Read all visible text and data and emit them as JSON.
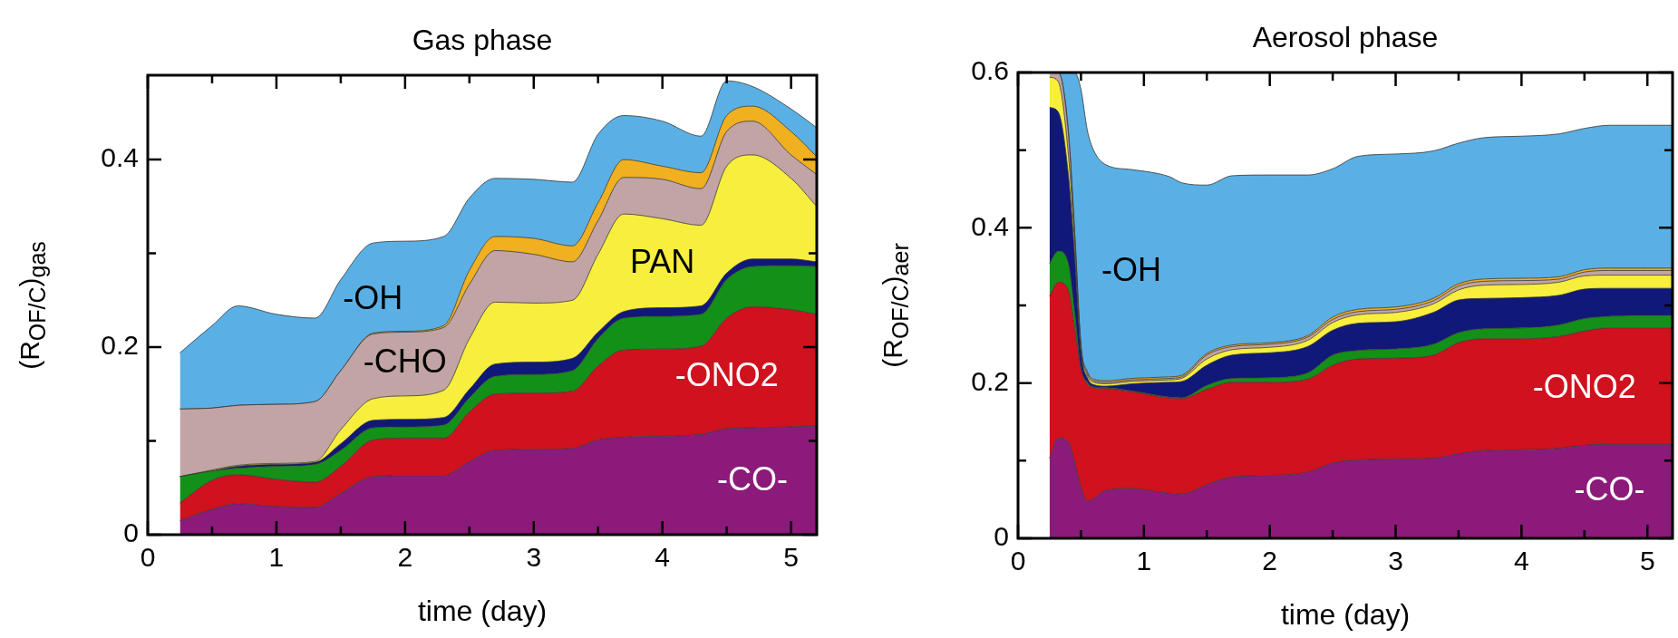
{
  "chart_data": [
    {
      "type": "area",
      "title": "Gas phase",
      "xlabel": "time (day)",
      "ylabel": "(R$_{OF/C}$)$_{gas}$",
      "stacked": true,
      "xlim": [
        0,
        5.2
      ],
      "ylim": [
        0,
        0.49
      ],
      "xticks": [
        0,
        {
          "value": 0.5,
          "label": null
        },
        1,
        {
          "value": 1.5,
          "label": null
        },
        2,
        {
          "value": 2.5,
          "label": null
        },
        3,
        {
          "value": 3.5,
          "label": null
        },
        4,
        {
          "value": 4.5,
          "label": null
        },
        5
      ],
      "yticks": [
        0,
        {
          "value": 0.1,
          "label": null
        },
        0.2,
        {
          "value": 0.3,
          "label": null
        },
        0.4
      ],
      "x": [
        0.25,
        0.5,
        0.7,
        1.0,
        1.3,
        1.5,
        1.75,
        2.0,
        2.3,
        2.5,
        2.7,
        3.0,
        3.3,
        3.5,
        3.7,
        4.0,
        4.3,
        4.5,
        4.7,
        5.0,
        5.2
      ],
      "series": [
        {
          "name": "-CO-",
          "color": "#8c1a7a",
          "values": [
            0.015,
            0.027,
            0.033,
            0.03,
            0.029,
            0.044,
            0.062,
            0.063,
            0.063,
            0.078,
            0.09,
            0.091,
            0.092,
            0.101,
            0.104,
            0.105,
            0.107,
            0.113,
            0.114,
            0.115,
            0.116
          ]
        },
        {
          "name": "-ONO2",
          "color": "#d0111e",
          "values": [
            0.019,
            0.031,
            0.031,
            0.029,
            0.027,
            0.029,
            0.039,
            0.04,
            0.04,
            0.053,
            0.06,
            0.06,
            0.061,
            0.079,
            0.093,
            0.093,
            0.094,
            0.118,
            0.129,
            0.125,
            0.119
          ]
        },
        {
          "color": "#139018",
          "values": [
            0.028,
            0.01,
            0.007,
            0.014,
            0.019,
            0.017,
            0.013,
            0.012,
            0.014,
            0.015,
            0.019,
            0.02,
            0.022,
            0.029,
            0.034,
            0.035,
            0.034,
            0.041,
            0.043,
            0.047,
            0.051
          ]
        },
        {
          "color": "#10187a",
          "values": [
            0,
            0,
            0.002,
            0.002,
            0.002,
            0.007,
            0.008,
            0.008,
            0.008,
            0.009,
            0.013,
            0.013,
            0.013,
            0.007,
            0.007,
            0.009,
            0.009,
            0.007,
            0.008,
            0.007,
            0.005
          ]
        },
        {
          "name": "PAN",
          "color": "#f7ee3d",
          "values": [
            0,
            0.001,
            0.001,
            0.001,
            0.001,
            0.015,
            0.023,
            0.025,
            0.029,
            0.054,
            0.066,
            0.063,
            0.062,
            0.083,
            0.104,
            0.095,
            0.086,
            0.114,
            0.111,
            0.086,
            0.059
          ]
        },
        {
          "name": "-CHO",
          "color": "#c2a4a4",
          "values": [
            0.072,
            0.066,
            0.064,
            0.063,
            0.064,
            0.063,
            0.069,
            0.068,
            0.067,
            0.058,
            0.055,
            0.052,
            0.041,
            0.036,
            0.039,
            0.042,
            0.039,
            0.037,
            0.036,
            0.025,
            0.034
          ]
        },
        {
          "color": "#f0b020",
          "values": [
            0,
            0,
            0,
            0,
            0,
            0,
            0.001,
            0.001,
            0.002,
            0.015,
            0.015,
            0.017,
            0.017,
            0.019,
            0.019,
            0.014,
            0.017,
            0.017,
            0.016,
            0.025,
            0.019
          ]
        },
        {
          "name": "-OH",
          "color": "#5ab0e4",
          "values": [
            0.06,
            0.088,
            0.106,
            0.096,
            0.089,
            0.097,
            0.096,
            0.096,
            0.095,
            0.077,
            0.062,
            0.063,
            0.068,
            0.073,
            0.047,
            0.048,
            0.039,
            0.037,
            0.021,
            0.024,
            0.031
          ]
        }
      ]
    },
    {
      "type": "area",
      "title": "Aerosol phase",
      "xlabel": "time (day)",
      "ylabel": "(R$_{OF/C}$)$_{aer}$",
      "stacked": true,
      "xlim": [
        0,
        5.2
      ],
      "ylim": [
        0,
        0.6
      ],
      "xticks": [
        0,
        {
          "value": 0.5,
          "label": null
        },
        1,
        {
          "value": 1.5,
          "label": null
        },
        2,
        {
          "value": 2.5,
          "label": null
        },
        3,
        {
          "value": 3.5,
          "label": null
        },
        4,
        {
          "value": 4.5,
          "label": null
        },
        5
      ],
      "yticks": [
        0,
        {
          "value": 0.1,
          "label": null
        },
        0.2,
        {
          "value": 0.3,
          "label": null
        },
        0.4,
        {
          "value": 0.5,
          "label": null
        },
        0.6
      ],
      "x": [
        0.25,
        0.32,
        0.4,
        0.45,
        0.5,
        0.55,
        0.6,
        0.7,
        0.9,
        1.2,
        1.3,
        1.5,
        1.7,
        2.0,
        2.3,
        2.5,
        2.7,
        3.0,
        3.3,
        3.5,
        3.7,
        4.0,
        4.3,
        4.5,
        4.7,
        5.0,
        5.2
      ],
      "series": [
        {
          "name": "-CO-",
          "color": "#8c1a7a",
          "values": [
            0.103,
            0.129,
            0.124,
            0.098,
            0.066,
            0.048,
            0.051,
            0.062,
            0.064,
            0.058,
            0.057,
            0.069,
            0.079,
            0.081,
            0.085,
            0.097,
            0.101,
            0.102,
            0.103,
            0.109,
            0.113,
            0.114,
            0.116,
            0.12,
            0.121,
            0.121,
            0.121
          ]
        },
        {
          "name": "-ONO2",
          "color": "#d0111e",
          "values": [
            0.209,
            0.201,
            0.196,
            0.172,
            0.152,
            0.151,
            0.143,
            0.131,
            0.125,
            0.123,
            0.123,
            0.123,
            0.122,
            0.12,
            0.12,
            0.126,
            0.13,
            0.13,
            0.133,
            0.143,
            0.144,
            0.143,
            0.144,
            0.147,
            0.15,
            0.15,
            0.15
          ]
        },
        {
          "color": "#139018",
          "values": [
            0.042,
            0.04,
            0.034,
            0.021,
            0.002,
            0.002,
            0.001,
            0.001,
            0.001,
            0.001,
            0.001,
            0.005,
            0.005,
            0.006,
            0.008,
            0.013,
            0.011,
            0.012,
            0.014,
            0.013,
            0.013,
            0.014,
            0.015,
            0.016,
            0.015,
            0.016,
            0.016
          ]
        },
        {
          "color": "#10187a",
          "values": [
            0.201,
            0.179,
            0.114,
            0.073,
            0.019,
            0.006,
            0.003,
            0.002,
            0.009,
            0.019,
            0.021,
            0.026,
            0.03,
            0.032,
            0.034,
            0.032,
            0.035,
            0.035,
            0.041,
            0.042,
            0.039,
            0.039,
            0.038,
            0.038,
            0.036,
            0.035,
            0.035
          ]
        },
        {
          "color": "#f7ee3d",
          "values": [
            0.039,
            0.039,
            0.026,
            0.016,
            0.005,
            0.003,
            0.003,
            0.003,
            0.003,
            0.003,
            0.004,
            0.008,
            0.007,
            0.007,
            0.008,
            0.01,
            0.011,
            0.012,
            0.011,
            0.013,
            0.017,
            0.017,
            0.017,
            0.017,
            0.017,
            0.017,
            0.017
          ]
        },
        {
          "color": "#c2a4a4",
          "values": [
            0.006,
            0.012,
            0.027,
            0.01,
            0.002,
            0.003,
            0.002,
            0.002,
            0.002,
            0.002,
            0.002,
            0.005,
            0.004,
            0.004,
            0.004,
            0.004,
            0.004,
            0.004,
            0.004,
            0.005,
            0.005,
            0.005,
            0.004,
            0.005,
            0.006,
            0.006,
            0.006
          ]
        },
        {
          "color": "#f0b020",
          "values": [
            0,
            0,
            0.004,
            0.005,
            0.003,
            0.002,
            0.002,
            0.002,
            0.002,
            0.002,
            0.002,
            0.002,
            0.002,
            0.002,
            0.002,
            0.003,
            0.003,
            0.003,
            0.003,
            0.003,
            0.003,
            0.003,
            0.003,
            0.003,
            0.003,
            0.003,
            0.003
          ]
        },
        {
          "name": "-OH",
          "color": "#5ab0e4",
          "values": [
            0,
            0,
            0.075,
            0.205,
            0.329,
            0.311,
            0.295,
            0.278,
            0.269,
            0.258,
            0.248,
            0.217,
            0.218,
            0.216,
            0.207,
            0.191,
            0.197,
            0.197,
            0.19,
            0.181,
            0.182,
            0.183,
            0.184,
            0.182,
            0.184,
            0.184,
            0.184
          ]
        }
      ]
    }
  ]
}
